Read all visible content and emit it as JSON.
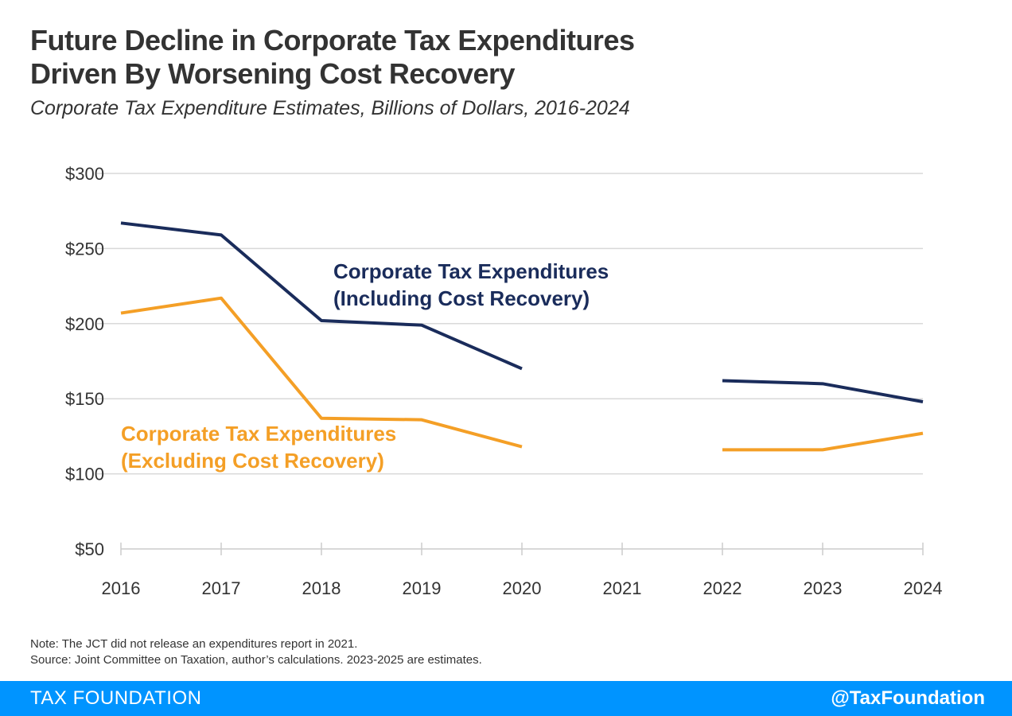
{
  "header": {
    "title_line1": "Future Decline in Corporate Tax Expenditures",
    "title_line2": "Driven By Worsening Cost Recovery",
    "subtitle": "Corporate Tax Expenditure Estimates, Billions of Dollars, 2016-2024"
  },
  "chart_data": {
    "type": "line",
    "x": [
      2016,
      2017,
      2018,
      2019,
      2020,
      2021,
      2022,
      2023,
      2024
    ],
    "x_tick_labels": [
      "2016",
      "2017",
      "2018",
      "2019",
      "2020",
      "2021",
      "2022",
      "2023",
      "2024"
    ],
    "y_ticks": [
      50,
      100,
      150,
      200,
      250,
      300
    ],
    "y_tick_labels": [
      "$50",
      "$100",
      "$150",
      "$200",
      "$250",
      "$300"
    ],
    "ylim": [
      50,
      300
    ],
    "grid": true,
    "series": [
      {
        "name": "Corporate Tax Expenditures (Including Cost Recovery)",
        "label_line1": "Corporate Tax Expenditures",
        "label_line2": "(Including Cost Recovery)",
        "color": "#1a2c5b",
        "values": [
          267,
          259,
          202,
          199,
          170,
          null,
          162,
          160,
          148
        ]
      },
      {
        "name": "Corporate Tax Expenditures (Excluding Cost Recovery)",
        "label_line1": "Corporate Tax Expenditures",
        "label_line2": "(Excluding Cost Recovery)",
        "color": "#f49f26",
        "values": [
          207,
          217,
          137,
          136,
          118,
          null,
          116,
          116,
          127
        ]
      }
    ]
  },
  "notes": {
    "note": "Note: The JCT did not release an expenditures report in 2021.",
    "source": "Source: Joint Committee on Taxation, author’s calculations. 2023-2025 are estimates."
  },
  "footer": {
    "brand": "TAX FOUNDATION",
    "handle": "@TaxFoundation"
  },
  "colors": {
    "footer_bg": "#0094ff",
    "grid": "#d9d9d9",
    "text": "#333333"
  }
}
